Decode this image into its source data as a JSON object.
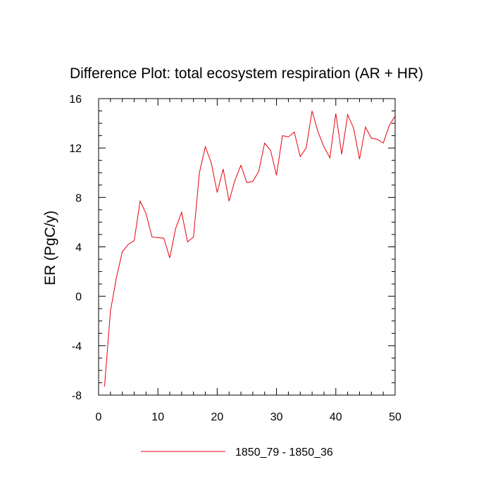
{
  "chart_data": {
    "type": "line",
    "title": "Difference Plot: total ecosystem respiration (AR + HR)",
    "xlabel": "",
    "ylabel": "ER  (PgC/y)",
    "xlim": [
      0,
      50
    ],
    "ylim": [
      -8,
      16
    ],
    "x_ticks": [
      0,
      10,
      20,
      30,
      40,
      50
    ],
    "y_ticks": [
      -8,
      -4,
      0,
      4,
      8,
      12,
      16
    ],
    "grid": false,
    "legend_position": "bottom-center",
    "series": [
      {
        "name": "1850_79 - 1850_36",
        "color": "#e8000b",
        "x": [
          1,
          2,
          3,
          4,
          5,
          6,
          7,
          8,
          9,
          10,
          11,
          12,
          13,
          14,
          15,
          16,
          17,
          18,
          19,
          20,
          21,
          22,
          23,
          24,
          25,
          26,
          27,
          28,
          29,
          30,
          31,
          32,
          33,
          34,
          35,
          36,
          37,
          38,
          39,
          40,
          41,
          42,
          43,
          44,
          45,
          46,
          47,
          48,
          49,
          50
        ],
        "values": [
          -7.3,
          -1.2,
          1.5,
          3.6,
          4.2,
          4.5,
          7.7,
          6.7,
          4.8,
          4.75,
          4.7,
          3.1,
          5.5,
          6.8,
          4.4,
          4.8,
          10.0,
          12.1,
          10.8,
          8.4,
          10.3,
          7.7,
          9.4,
          10.6,
          9.2,
          9.3,
          10.1,
          12.4,
          11.8,
          9.8,
          13.0,
          12.9,
          13.3,
          11.3,
          12.0,
          15.0,
          13.3,
          12.1,
          11.2,
          14.8,
          11.5,
          14.7,
          13.6,
          11.1,
          13.7,
          12.8,
          12.7,
          12.4,
          13.8,
          14.6
        ]
      }
    ]
  }
}
